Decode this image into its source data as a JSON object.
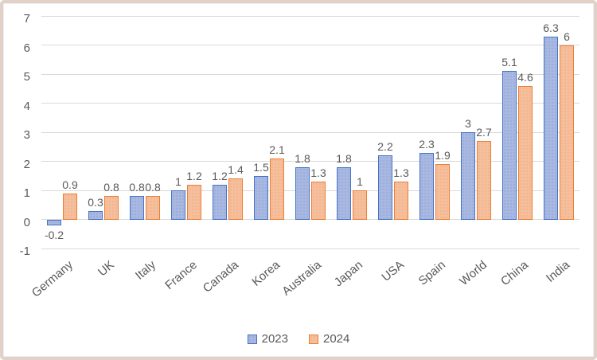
{
  "frame": {
    "border_color": "#e2d1c7",
    "background": "#ffffff"
  },
  "chart_data": {
    "type": "bar",
    "title": "",
    "xlabel": "",
    "ylabel": "",
    "categories": [
      "Germany",
      "UK",
      "Italy",
      "France",
      "Canada",
      "Korea",
      "Australia",
      "Japan",
      "USA",
      "Spain",
      "World",
      "China",
      "India"
    ],
    "series": [
      {
        "name": "2023",
        "values": [
          -0.2,
          0.3,
          0.8,
          1,
          1.2,
          1.5,
          1.8,
          1.8,
          2.2,
          2.3,
          3,
          5.1,
          6.3
        ],
        "labels": [
          "-0.2",
          "0.3",
          "0.8",
          "1",
          "1.2",
          "1.5",
          "1.8",
          "1.8",
          "2.2",
          "2.3",
          "3",
          "5.1",
          "6.3"
        ],
        "fill": "#a9b8e1",
        "border": "#4472c4"
      },
      {
        "name": "2024",
        "values": [
          0.9,
          0.8,
          0.8,
          1.2,
          1.4,
          2.1,
          1.3,
          1,
          1.3,
          1.9,
          2.7,
          4.6,
          6
        ],
        "labels": [
          "0.9",
          "0.8",
          "0.8",
          "1.2",
          "1.4",
          "2.1",
          "1.3",
          "1",
          "1.3",
          "1.9",
          "2.7",
          "4.6",
          "6"
        ],
        "fill": "#f5bf9d",
        "border": "#ed7d31"
      }
    ],
    "ylim": [
      -1,
      7
    ],
    "ytick_step": 1,
    "yticks": [
      "-1",
      "0",
      "1",
      "2",
      "3",
      "4",
      "5",
      "6",
      "7"
    ],
    "grid": true,
    "grid_color": "#d9d9d9",
    "label_color": "#595959",
    "legend_position": "bottom"
  }
}
